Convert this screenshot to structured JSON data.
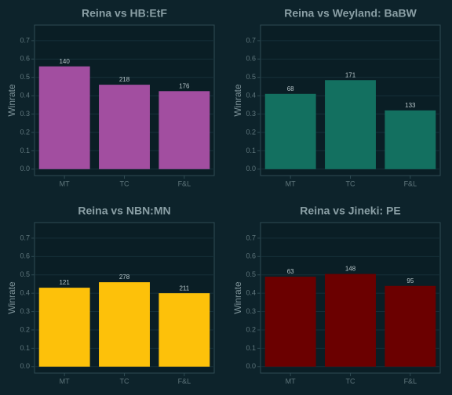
{
  "chart_data": [
    {
      "type": "bar",
      "title": "Reina vs HB:EtF",
      "y_label": "Winrate",
      "categories": [
        "MT",
        "TC",
        "F&L"
      ],
      "values": [
        0.56,
        0.46,
        0.425
      ],
      "counts": [
        140,
        218,
        176
      ],
      "color": "#a24ea0",
      "ylim": [
        -0.035,
        0.785
      ],
      "yticks": [
        {
          "value": 0,
          "label": "0.0"
        },
        0.1,
        0.2,
        0.3,
        0.4,
        0.5,
        0.6,
        0.7
      ],
      "grid": true
    },
    {
      "type": "bar",
      "title": "Reina vs Weyland: BaBW",
      "y_label": "Winrate",
      "categories": [
        "MT",
        "TC",
        "F&L"
      ],
      "values": [
        0.41,
        0.485,
        0.32
      ],
      "counts": [
        68,
        171,
        133
      ],
      "color": "#137060",
      "ylim": [
        -0.035,
        0.785
      ],
      "yticks": [
        {
          "value": 0,
          "label": "0.0"
        },
        0.1,
        0.2,
        0.3,
        0.4,
        0.5,
        0.6,
        0.7
      ],
      "grid": true
    },
    {
      "type": "bar",
      "title": "Reina vs NBN:MN",
      "y_label": "Winrate",
      "categories": [
        "MT",
        "TC",
        "F&L"
      ],
      "values": [
        0.43,
        0.46,
        0.4
      ],
      "counts": [
        121,
        278,
        211
      ],
      "color": "#fdc10a",
      "ylim": [
        -0.035,
        0.785
      ],
      "yticks": [
        {
          "value": 0,
          "label": "0.0"
        },
        0.1,
        0.2,
        0.3,
        0.4,
        0.5,
        0.6,
        0.7
      ],
      "grid": true
    },
    {
      "type": "bar",
      "title": "Reina vs Jineki: PE",
      "y_label": "Winrate",
      "categories": [
        "MT",
        "TC",
        "F&L"
      ],
      "values": [
        0.49,
        0.505,
        0.44
      ],
      "counts": [
        63,
        148,
        95
      ],
      "color": "#6b0000",
      "ylim": [
        -0.035,
        0.785
      ],
      "yticks": [
        {
          "value": 0,
          "label": "0.0"
        },
        0.1,
        0.2,
        0.3,
        0.4,
        0.5,
        0.6,
        0.7
      ],
      "grid": true
    }
  ]
}
